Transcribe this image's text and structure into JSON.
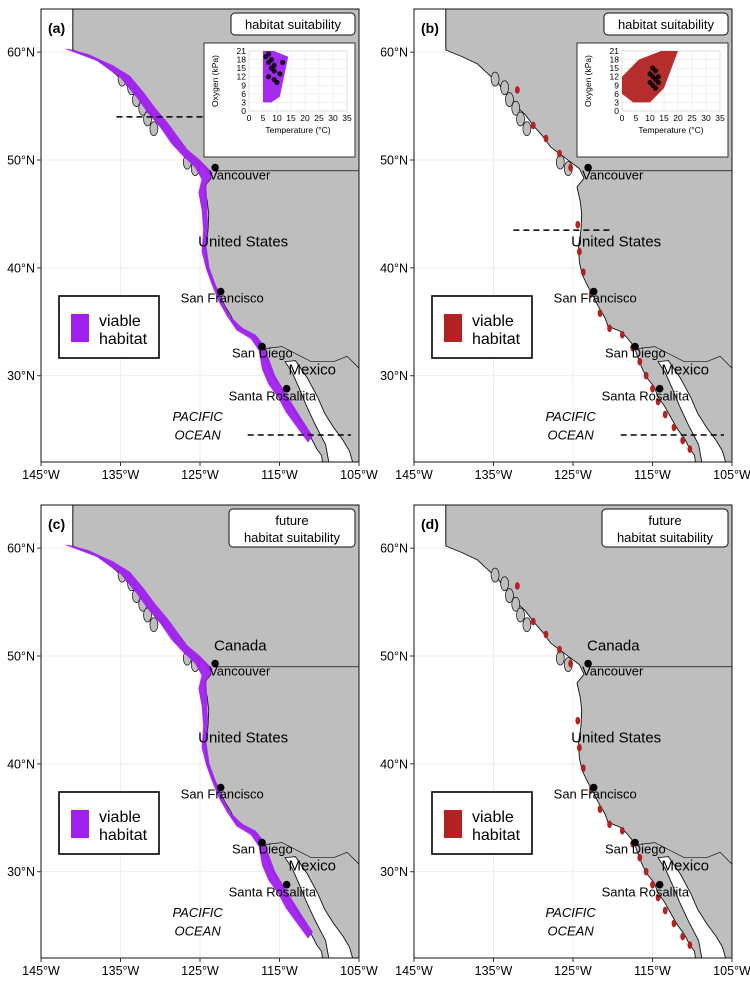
{
  "panels": [
    {
      "id": "a",
      "tag": "(a)",
      "title_lines": [
        "habitat suitability"
      ],
      "habitat_color": "#a020f0",
      "legend_lines": [
        "viable",
        "habitat"
      ],
      "inset": {
        "xlabel": "Temperature (°C)",
        "ylabel": "Oxygen (kPa)"
      },
      "ocean_label": true
    },
    {
      "id": "b",
      "tag": "(b)",
      "title_lines": [
        "habitat suitability"
      ],
      "habitat_color": "#b22222",
      "legend_lines": [
        "viable",
        "habitat"
      ],
      "inset": {
        "xlabel": "Temperature (°C)",
        "ylabel": "Oxygen (kPa)"
      },
      "ocean_label": true
    },
    {
      "id": "c",
      "tag": "(c)",
      "title_lines": [
        "future",
        "habitat suitability"
      ],
      "habitat_color": "#a020f0",
      "legend_lines": [
        "viable",
        "habitat"
      ],
      "inset": null,
      "ocean_label": true
    },
    {
      "id": "d",
      "tag": "(d)",
      "title_lines": [
        "future",
        "habitat suitability"
      ],
      "habitat_color": "#b22222",
      "legend_lines": [
        "viable",
        "habitat"
      ],
      "inset": null,
      "ocean_label": true
    }
  ],
  "axes": {
    "x_ticks": [
      "145°W",
      "135°W",
      "125°W",
      "115°W",
      "105°W"
    ],
    "y_ticks": [
      "60°N",
      "50°N",
      "40°N",
      "30°N"
    ]
  },
  "countries": [
    "Canada",
    "United States",
    "Mexico"
  ],
  "cities": [
    "Vancouver",
    "San Francisco",
    "San Diego",
    "Santa Rosaliita"
  ],
  "ocean": [
    "PACIFIC",
    "OCEAN"
  ],
  "inset_ticks": {
    "x": [
      "0",
      "5",
      "10",
      "15",
      "20",
      "25",
      "30",
      "35"
    ],
    "y": [
      "0",
      "3",
      "6",
      "9",
      "12",
      "15",
      "18",
      "21"
    ]
  },
  "colors": {
    "land": "#bebebe",
    "sea": "#ffffff",
    "purple": "#a020f0",
    "red": "#b22222"
  }
}
